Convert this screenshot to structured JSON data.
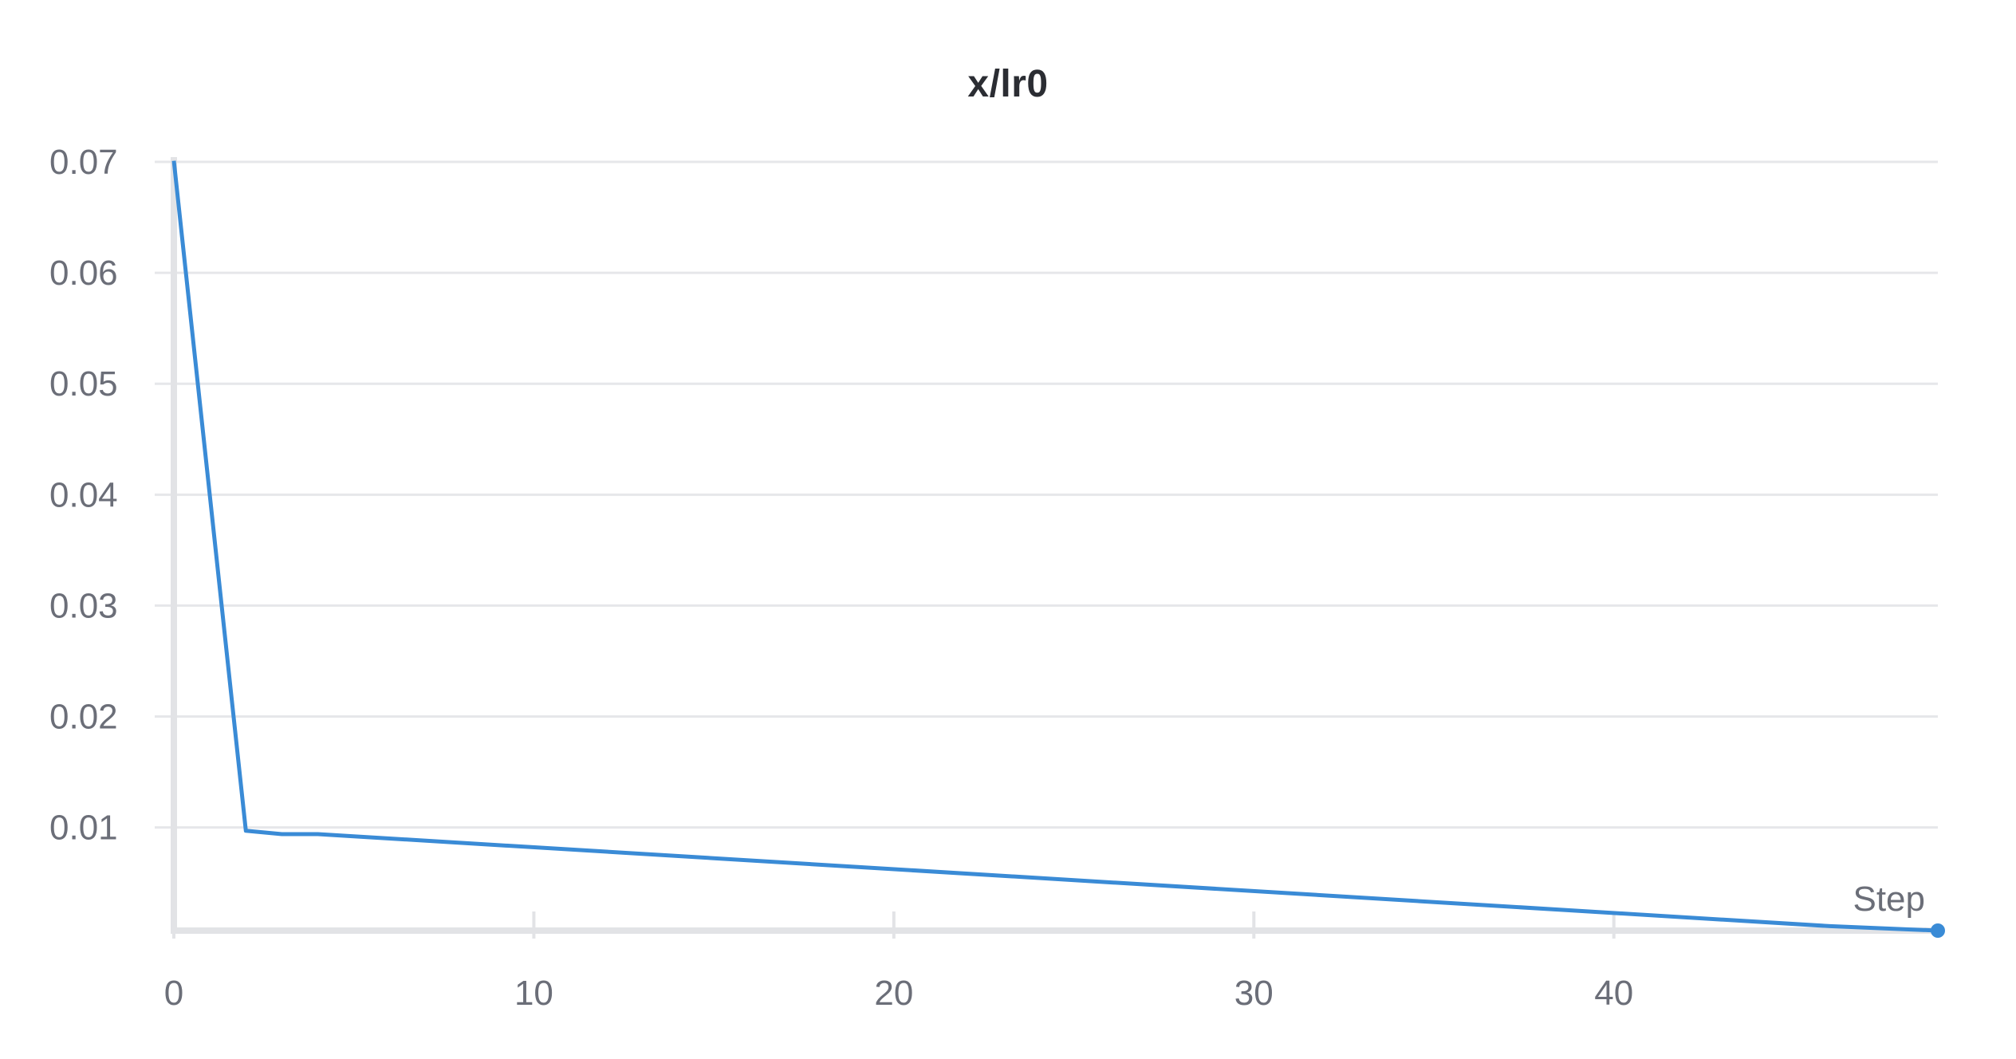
{
  "chart_data": {
    "type": "line",
    "title": "x/lr0",
    "xlabel": "Step",
    "ylabel": "",
    "xlim": [
      0,
      49
    ],
    "ylim": [
      0.0007,
      0.07
    ],
    "x_ticks": [
      0,
      10,
      20,
      30,
      40
    ],
    "x_tick_labels": [
      "0",
      "10",
      "20",
      "30",
      "40"
    ],
    "y_ticks": [
      0.01,
      0.02,
      0.03,
      0.04,
      0.05,
      0.06,
      0.07
    ],
    "y_tick_labels": [
      "0.01",
      "0.02",
      "0.03",
      "0.04",
      "0.05",
      "0.06",
      "0.07"
    ],
    "grid": true,
    "color": "#3a8bd6",
    "series": [
      {
        "x": [
          0,
          2,
          3,
          4,
          46,
          49
        ],
        "y": [
          0.0701,
          0.0097,
          0.0094,
          0.0094,
          0.0011,
          0.0007
        ]
      }
    ],
    "end_marker": true
  }
}
